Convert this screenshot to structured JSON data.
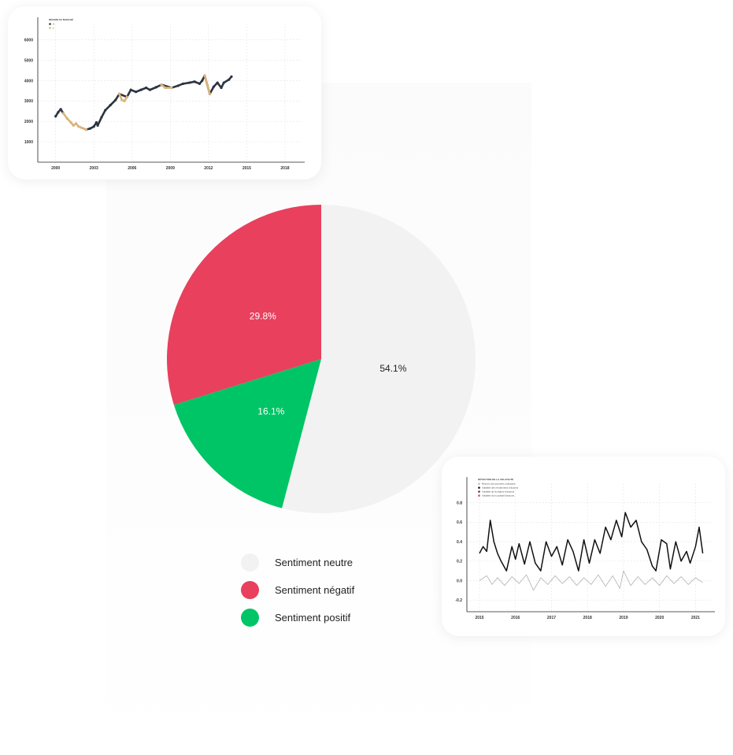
{
  "chart_data": [
    {
      "type": "line",
      "x_ticks": [
        "2000",
        "2003",
        "2006",
        "2009",
        "2012",
        "2015",
        "2018"
      ],
      "y_ticks": [
        1000,
        2000,
        3000,
        4000,
        5000,
        6000
      ],
      "ylim": [
        0,
        6800
      ],
      "xlim": [
        1998.6,
        2019.3
      ],
      "legend_title": "RÉGIME DU MARCHÉ",
      "legend_entries": [
        "0",
        "1"
      ],
      "series": [
        {
          "color": "#2b3440",
          "values": [
            [
              2000.0,
              2250
            ],
            [
              2000.2,
              2450
            ],
            [
              2000.4,
              2600
            ],
            [
              2000.6,
              2400
            ],
            [
              2002.4,
              1600
            ],
            [
              2002.7,
              1650
            ],
            [
              2003.0,
              1750
            ],
            [
              2003.2,
              1950
            ],
            [
              2003.3,
              1800
            ],
            [
              2003.6,
              2200
            ],
            [
              2003.9,
              2550
            ],
            [
              2004.3,
              2800
            ],
            [
              2004.7,
              3050
            ],
            [
              2005.0,
              3350
            ],
            [
              2005.6,
              3200
            ],
            [
              2005.9,
              3550
            ],
            [
              2006.3,
              3450
            ],
            [
              2006.7,
              3550
            ],
            [
              2007.1,
              3650
            ],
            [
              2007.4,
              3550
            ],
            [
              2007.9,
              3680
            ],
            [
              2008.3,
              3800
            ],
            [
              2009.1,
              3650
            ],
            [
              2009.6,
              3750
            ],
            [
              2010.0,
              3850
            ],
            [
              2010.5,
              3900
            ],
            [
              2010.9,
              3950
            ],
            [
              2011.3,
              3850
            ],
            [
              2011.5,
              4000
            ],
            [
              2011.7,
              4250
            ],
            [
              2012.1,
              3350
            ],
            [
              2012.4,
              3700
            ],
            [
              2012.7,
              3900
            ],
            [
              2013.0,
              3650
            ],
            [
              2013.2,
              3900
            ],
            [
              2013.6,
              4050
            ],
            [
              2013.8,
              4200
            ]
          ]
        },
        {
          "color": "#d9b47a",
          "values": [
            [
              2000.6,
              2400
            ],
            [
              2000.9,
              2150
            ],
            [
              2001.2,
              1950
            ],
            [
              2001.4,
              1800
            ],
            [
              2001.6,
              1900
            ],
            [
              2001.8,
              1750
            ],
            [
              2002.0,
              1700
            ],
            [
              2002.2,
              1650
            ],
            [
              2002.4,
              1600
            ],
            [
              2005.0,
              3350
            ],
            [
              2005.2,
              3050
            ],
            [
              2005.4,
              3000
            ],
            [
              2005.6,
              3200
            ],
            [
              2008.3,
              3800
            ],
            [
              2008.6,
              3650
            ],
            [
              2009.1,
              3650
            ],
            [
              2011.7,
              4250
            ],
            [
              2011.9,
              3800
            ],
            [
              2012.1,
              3350
            ]
          ]
        }
      ]
    },
    {
      "type": "pie",
      "slices": [
        {
          "name": "Sentiment neutre",
          "value": 54.1,
          "label": "54.1%",
          "color": "#f2f2f2",
          "text_color": "#222222"
        },
        {
          "name": "Sentiment positif",
          "value": 16.1,
          "label": "16.1%",
          "color": "#00c566",
          "text_color": "#ffffff"
        },
        {
          "name": "Sentiment négatif",
          "value": 29.8,
          "label": "29.8%",
          "color": "#e8405d",
          "text_color": "#ffffff"
        }
      ],
      "legend_order": [
        0,
        2,
        1
      ]
    },
    {
      "type": "line",
      "x_ticks": [
        "2015",
        "2016",
        "2017",
        "2018",
        "2019",
        "2020",
        "2021"
      ],
      "y_ticks": [
        "-0.2",
        "0.0",
        "0.2",
        "0.4",
        "0.6",
        "0.8"
      ],
      "ylim": [
        -0.32,
        1.0
      ],
      "xlim": [
        2014.65,
        2021.45
      ],
      "legend_title": "DÉTECTION DE LA VOLATILITÉ",
      "legend_entries": [
        "Returns des journées ordinaires",
        "Volatilité des rendements d'actions",
        "Volatilité de la régime d'actions",
        "Volatilité d'un cocktail d'actions"
      ],
      "legend_colors": [
        "#bfbfbf",
        "#111111",
        "#6b2a3a",
        "#e8405d"
      ],
      "series": [
        {
          "color": "#111111",
          "values": [
            [
              2015.0,
              0.28
            ],
            [
              2015.1,
              0.35
            ],
            [
              2015.2,
              0.3
            ],
            [
              2015.3,
              0.62
            ],
            [
              2015.4,
              0.4
            ],
            [
              2015.5,
              0.28
            ],
            [
              2015.6,
              0.2
            ],
            [
              2015.75,
              0.1
            ],
            [
              2015.9,
              0.35
            ],
            [
              2016.0,
              0.22
            ],
            [
              2016.1,
              0.38
            ],
            [
              2016.25,
              0.17
            ],
            [
              2016.4,
              0.4
            ],
            [
              2016.55,
              0.18
            ],
            [
              2016.7,
              0.1
            ],
            [
              2016.85,
              0.4
            ],
            [
              2017.0,
              0.25
            ],
            [
              2017.15,
              0.35
            ],
            [
              2017.3,
              0.16
            ],
            [
              2017.45,
              0.42
            ],
            [
              2017.6,
              0.3
            ],
            [
              2017.75,
              0.1
            ],
            [
              2017.9,
              0.42
            ],
            [
              2018.05,
              0.18
            ],
            [
              2018.2,
              0.42
            ],
            [
              2018.35,
              0.28
            ],
            [
              2018.5,
              0.55
            ],
            [
              2018.65,
              0.42
            ],
            [
              2018.8,
              0.62
            ],
            [
              2018.95,
              0.45
            ],
            [
              2019.05,
              0.7
            ],
            [
              2019.2,
              0.55
            ],
            [
              2019.35,
              0.62
            ],
            [
              2019.5,
              0.4
            ],
            [
              2019.65,
              0.32
            ],
            [
              2019.8,
              0.15
            ],
            [
              2019.9,
              0.1
            ],
            [
              2020.05,
              0.42
            ],
            [
              2020.2,
              0.38
            ],
            [
              2020.3,
              0.12
            ],
            [
              2020.45,
              0.4
            ],
            [
              2020.6,
              0.2
            ],
            [
              2020.75,
              0.3
            ],
            [
              2020.85,
              0.18
            ],
            [
              2021.0,
              0.35
            ],
            [
              2021.1,
              0.55
            ],
            [
              2021.2,
              0.28
            ]
          ]
        },
        {
          "color": "#b8b8b8",
          "values": [
            [
              2015.0,
              0.0
            ],
            [
              2015.2,
              0.05
            ],
            [
              2015.35,
              -0.04
            ],
            [
              2015.5,
              0.03
            ],
            [
              2015.7,
              -0.05
            ],
            [
              2015.9,
              0.04
            ],
            [
              2016.1,
              -0.03
            ],
            [
              2016.3,
              0.06
            ],
            [
              2016.5,
              -0.1
            ],
            [
              2016.7,
              0.03
            ],
            [
              2016.9,
              -0.04
            ],
            [
              2017.1,
              0.05
            ],
            [
              2017.3,
              -0.03
            ],
            [
              2017.5,
              0.04
            ],
            [
              2017.7,
              -0.05
            ],
            [
              2017.9,
              0.03
            ],
            [
              2018.1,
              -0.04
            ],
            [
              2018.3,
              0.06
            ],
            [
              2018.5,
              -0.06
            ],
            [
              2018.7,
              0.05
            ],
            [
              2018.9,
              -0.08
            ],
            [
              2019.0,
              0.1
            ],
            [
              2019.2,
              -0.05
            ],
            [
              2019.4,
              0.04
            ],
            [
              2019.6,
              -0.04
            ],
            [
              2019.8,
              0.03
            ],
            [
              2020.0,
              -0.05
            ],
            [
              2020.2,
              0.05
            ],
            [
              2020.4,
              -0.03
            ],
            [
              2020.6,
              0.04
            ],
            [
              2020.8,
              -0.04
            ],
            [
              2021.0,
              0.03
            ],
            [
              2021.2,
              -0.02
            ]
          ]
        }
      ]
    }
  ]
}
